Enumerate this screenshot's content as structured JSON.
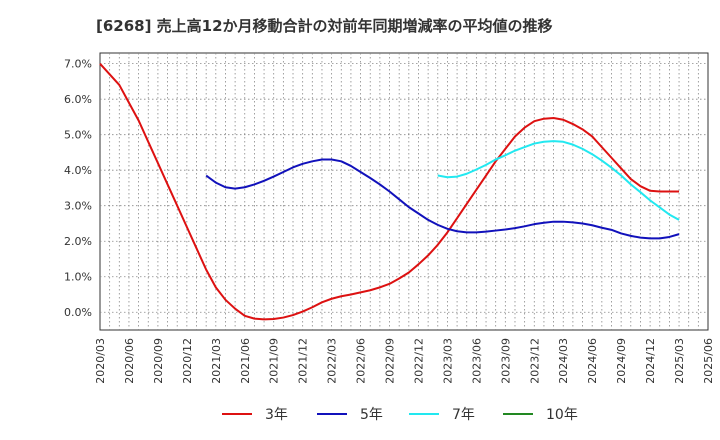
{
  "chart_data": {
    "type": "line",
    "title": "[6268]  売上高12か月移動合計の対前年同期増減率の平均値の推移",
    "xlabel": "",
    "ylabel": "",
    "ylim": [
      -0.5,
      7.3
    ],
    "y_ticks": [
      "0.0%",
      "1.0%",
      "2.0%",
      "3.0%",
      "4.0%",
      "5.0%",
      "6.0%",
      "7.0%"
    ],
    "x_ticks": [
      "2020/03",
      "2020/06",
      "2020/09",
      "2020/12",
      "2021/03",
      "2021/06",
      "2021/09",
      "2021/12",
      "2022/03",
      "2022/06",
      "2022/09",
      "2022/12",
      "2023/03",
      "2023/06",
      "2023/09",
      "2023/12",
      "2024/03",
      "2024/06",
      "2024/09",
      "2024/12",
      "2025/03",
      "2025/06"
    ],
    "grid": true,
    "legend_position": "bottom",
    "series": [
      {
        "name": "3年",
        "color": "#dd1111",
        "x": [
          "2020/03",
          "2020/04",
          "2020/05",
          "2020/06",
          "2020/07",
          "2020/08",
          "2020/09",
          "2020/10",
          "2020/11",
          "2020/12",
          "2021/01",
          "2021/02",
          "2021/03",
          "2021/04",
          "2021/05",
          "2021/06",
          "2021/07",
          "2021/08",
          "2021/09",
          "2021/10",
          "2021/11",
          "2021/12",
          "2022/01",
          "2022/02",
          "2022/03",
          "2022/04",
          "2022/05",
          "2022/06",
          "2022/07",
          "2022/08",
          "2022/09",
          "2022/10",
          "2022/11",
          "2022/12",
          "2023/01",
          "2023/02",
          "2023/03",
          "2023/04",
          "2023/05",
          "2023/06",
          "2023/07",
          "2023/08",
          "2023/09",
          "2023/10",
          "2023/11",
          "2023/12",
          "2024/01",
          "2024/02",
          "2024/03",
          "2024/04",
          "2024/05",
          "2024/06",
          "2024/07",
          "2024/08",
          "2024/09",
          "2024/10",
          "2024/11",
          "2024/12",
          "2025/01",
          "2025/02",
          "2025/03"
        ],
        "values": [
          7.0,
          6.7,
          6.4,
          5.9,
          5.4,
          4.8,
          4.2,
          3.6,
          3.0,
          2.4,
          1.8,
          1.2,
          0.7,
          0.35,
          0.1,
          -0.1,
          -0.18,
          -0.2,
          -0.19,
          -0.15,
          -0.08,
          0.02,
          0.14,
          0.28,
          0.38,
          0.45,
          0.5,
          0.56,
          0.62,
          0.7,
          0.8,
          0.95,
          1.12,
          1.35,
          1.6,
          1.9,
          2.25,
          2.65,
          3.05,
          3.45,
          3.85,
          4.25,
          4.6,
          4.95,
          5.2,
          5.38,
          5.45,
          5.47,
          5.42,
          5.3,
          5.15,
          4.95,
          4.65,
          4.35,
          4.05,
          3.75,
          3.55,
          3.42,
          3.4,
          3.4,
          3.4
        ]
      },
      {
        "name": "5年",
        "color": "#1111bb",
        "x": [
          "2021/02",
          "2021/03",
          "2021/04",
          "2021/05",
          "2021/06",
          "2021/07",
          "2021/08",
          "2021/09",
          "2021/10",
          "2021/11",
          "2021/12",
          "2022/01",
          "2022/02",
          "2022/03",
          "2022/04",
          "2022/05",
          "2022/06",
          "2022/07",
          "2022/08",
          "2022/09",
          "2022/10",
          "2022/11",
          "2022/12",
          "2023/01",
          "2023/02",
          "2023/03",
          "2023/04",
          "2023/05",
          "2023/06",
          "2023/07",
          "2023/08",
          "2023/09",
          "2023/10",
          "2023/11",
          "2023/12",
          "2024/01",
          "2024/02",
          "2024/03",
          "2024/04",
          "2024/05",
          "2024/06",
          "2024/07",
          "2024/08",
          "2024/09",
          "2024/10",
          "2024/11",
          "2024/12",
          "2025/01",
          "2025/02",
          "2025/03"
        ],
        "values": [
          3.85,
          3.65,
          3.52,
          3.48,
          3.52,
          3.6,
          3.7,
          3.82,
          3.95,
          4.08,
          4.18,
          4.25,
          4.3,
          4.3,
          4.25,
          4.12,
          3.95,
          3.78,
          3.6,
          3.4,
          3.18,
          2.96,
          2.78,
          2.6,
          2.46,
          2.35,
          2.28,
          2.25,
          2.25,
          2.27,
          2.3,
          2.33,
          2.37,
          2.42,
          2.48,
          2.52,
          2.55,
          2.55,
          2.53,
          2.5,
          2.45,
          2.38,
          2.32,
          2.22,
          2.15,
          2.1,
          2.08,
          2.08,
          2.12,
          2.2
        ]
      },
      {
        "name": "7年",
        "color": "#22e8f0",
        "x": [
          "2023/02",
          "2023/03",
          "2023/04",
          "2023/05",
          "2023/06",
          "2023/07",
          "2023/08",
          "2023/09",
          "2023/10",
          "2023/11",
          "2023/12",
          "2024/01",
          "2024/02",
          "2024/03",
          "2024/04",
          "2024/05",
          "2024/06",
          "2024/07",
          "2024/08",
          "2024/09",
          "2024/10",
          "2024/11",
          "2024/12",
          "2025/01",
          "2025/02",
          "2025/03"
        ],
        "values": [
          3.85,
          3.8,
          3.82,
          3.9,
          4.02,
          4.15,
          4.3,
          4.42,
          4.55,
          4.65,
          4.75,
          4.8,
          4.82,
          4.8,
          4.72,
          4.6,
          4.45,
          4.27,
          4.07,
          3.85,
          3.6,
          3.38,
          3.15,
          2.95,
          2.75,
          2.6
        ]
      },
      {
        "name": "10年",
        "color": "#228822",
        "x": [],
        "values": []
      }
    ]
  }
}
